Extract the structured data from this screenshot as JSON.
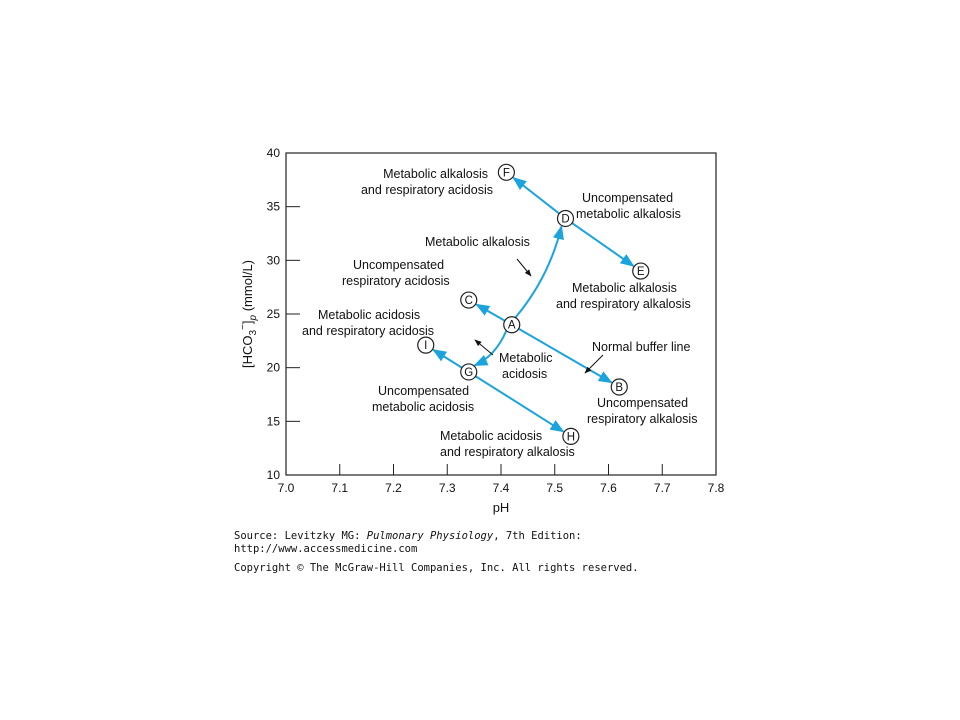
{
  "chart_data": {
    "type": "line",
    "xlabel": "pH",
    "xlim": [
      7.0,
      7.8
    ],
    "x_ticks": [
      "7.0",
      "7.1",
      "7.2",
      "7.3",
      "7.4",
      "7.5",
      "7.6",
      "7.7",
      "7.8"
    ],
    "ylim": [
      10,
      40
    ],
    "y_ticks": [
      "10",
      "15",
      "20",
      "25",
      "30",
      "35",
      "40"
    ],
    "points": [
      {
        "id": "A",
        "ph": 7.42,
        "hco3": 24.0
      },
      {
        "id": "B",
        "ph": 7.62,
        "hco3": 18.2
      },
      {
        "id": "C",
        "ph": 7.34,
        "hco3": 26.3
      },
      {
        "id": "D",
        "ph": 7.52,
        "hco3": 33.9
      },
      {
        "id": "E",
        "ph": 7.66,
        "hco3": 29.0
      },
      {
        "id": "F",
        "ph": 7.41,
        "hco3": 38.2
      },
      {
        "id": "G",
        "ph": 7.34,
        "hco3": 19.6
      },
      {
        "id": "H",
        "ph": 7.53,
        "hco3": 13.6
      },
      {
        "id": "I",
        "ph": 7.26,
        "hco3": 22.1
      }
    ],
    "paths": [
      {
        "name": "Normal buffer line",
        "from": "A",
        "to": "B",
        "arrow": "end"
      },
      {
        "from": "A",
        "to": "C",
        "arrow": "end"
      },
      {
        "name": "Metabolic alkalosis",
        "from": "A",
        "to": "D",
        "arrow": "end",
        "curved": true
      },
      {
        "name": "Metabolic acidosis",
        "from": "A",
        "to": "G",
        "arrow": "end",
        "curved": true
      },
      {
        "from": "D",
        "to": "E",
        "arrow": "end"
      },
      {
        "from": "D",
        "to": "F",
        "arrow": "end"
      },
      {
        "from": "G",
        "to": "H",
        "arrow": "end"
      },
      {
        "from": "G",
        "to": "I",
        "arrow": "end"
      }
    ],
    "line_color": "#1aa3dc"
  },
  "annotations": {
    "f_line1": "Metabolic alkalosis",
    "f_line2": "and respiratory acidosis",
    "d_line1": "Uncompensated",
    "d_line2": "metabolic alkalosis",
    "met_alk": "Metabolic alkalosis",
    "c_line1": "Uncompensated",
    "c_line2": "respiratory acidosis",
    "e_line1": "Metabolic alkalosis",
    "e_line2": "and respiratory alkalosis",
    "i_line1": "Metabolic acidosis",
    "i_line2": "and respiratory acidosis",
    "normal_buffer": "Normal buffer line",
    "met_acid_1": "Metabolic",
    "met_acid_2": "acidosis",
    "g_line1": "Uncompensated",
    "g_line2": "metabolic acidosis",
    "b_line1": "Uncompensated",
    "b_line2": "respiratory alkalosis",
    "h_line1": "Metabolic acidosis",
    "h_line2": "and respiratory alkalosis"
  },
  "y_title": {
    "prefix": "[HCO",
    "sub3": "3",
    "sup": "−",
    "close": "]",
    "subp": "p",
    "units": " (mmol/L)"
  },
  "credits": {
    "source_prefix": "Source: Levitzky MG: ",
    "source_book": "Pulmonary Physiology",
    "source_suffix": ", 7th Edition:",
    "url": "http://www.accessmedicine.com",
    "copyright": "Copyright © The McGraw-Hill Companies, Inc. All rights reserved."
  }
}
